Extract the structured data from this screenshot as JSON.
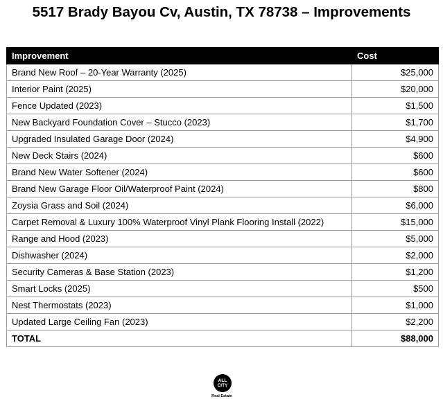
{
  "title": "5517 Brady Bayou Cv, Austin, TX 78738 – Improvements",
  "table": {
    "headers": [
      "Improvement",
      "Cost"
    ],
    "rows": [
      [
        "Brand New Roof – 20-Year Warranty (2025)",
        "$25,000"
      ],
      [
        "Interior Paint (2025)",
        "$20,000"
      ],
      [
        "Fence Updated (2023)",
        "$1,500"
      ],
      [
        "New Backyard Foundation Cover – Stucco (2023)",
        "$1,700"
      ],
      [
        "Upgraded Insulated Garage Door (2024)",
        "$4,900"
      ],
      [
        "New Deck Stairs (2024)",
        "$600"
      ],
      [
        "Brand New Water Softener (2024)",
        "$600"
      ],
      [
        "Brand New Garage Floor Oil/Waterproof Paint (2024)",
        "$800"
      ],
      [
        "Zoysia Grass and Soil (2024)",
        "$6,000"
      ],
      [
        "Carpet Removal & Luxury 100% Waterproof Vinyl Plank Flooring Install (2022)",
        "$15,000"
      ],
      [
        "Range and Hood (2023)",
        "$5,000"
      ],
      [
        "Dishwasher (2024)",
        "$2,000"
      ],
      [
        "Security Cameras & Base Station (2023)",
        "$1,200"
      ],
      [
        "Smart Locks (2025)",
        "$500"
      ],
      [
        "Nest Thermostats (2023)",
        "$1,000"
      ],
      [
        "Updated Large Ceiling Fan (2023)",
        "$2,200"
      ]
    ],
    "total": [
      "TOTAL",
      "$88,000"
    ]
  },
  "logo": {
    "text": "ALL CITY",
    "subtext": "Real Estate"
  }
}
